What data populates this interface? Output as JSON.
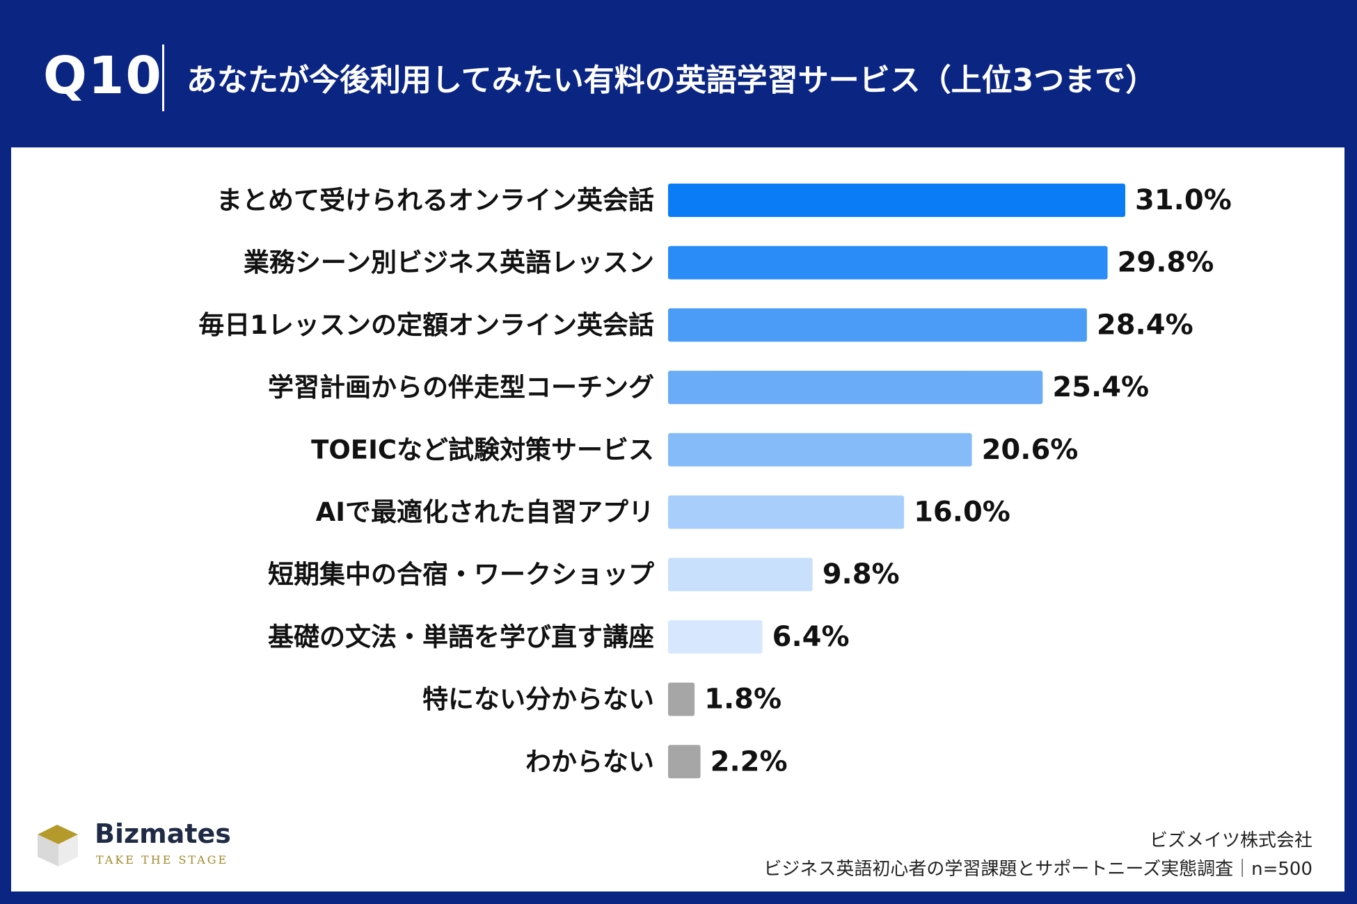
{
  "header": {
    "question_number": "Q10",
    "title": "あなたが今後利用してみたい有料の英語学習サービス（上位3つまで）"
  },
  "chart_data": {
    "type": "bar",
    "orientation": "horizontal",
    "title": "あなたが今後利用してみたい有料の英語学習サービス（上位3つまで）",
    "categories": [
      "まとめて受けられるオンライン英会話",
      "業務シーン別ビジネス英語レッスン",
      "毎日1レッスンの定額オンライン英会話",
      "学習計画からの伴走型コーチング",
      "TOEICなど試験対策サービス",
      "AIで最適化された自習アプリ",
      "短期集中の合宿・ワークショップ",
      "基礎の文法・単語を学び直す講座",
      "特にない分からない",
      "わからない"
    ],
    "values": [
      31.0,
      29.8,
      28.4,
      25.4,
      20.6,
      16.0,
      9.8,
      6.4,
      1.8,
      2.2
    ],
    "value_labels": [
      "31.0%",
      "29.8%",
      "28.4%",
      "25.4%",
      "20.6%",
      "16.0%",
      "9.8%",
      "6.4%",
      "1.8%",
      "2.2%"
    ],
    "colors": [
      "#0a7cf5",
      "#2a8cf6",
      "#4a9cf7",
      "#6aacf8",
      "#86bbf9",
      "#a8cefb",
      "#c9e0fc",
      "#d7e7fd",
      "#a6a6a6",
      "#a6a6a6"
    ],
    "unit": "%",
    "xlim": [
      0,
      31.0
    ],
    "grid": false,
    "legend": "none"
  },
  "branding": {
    "name": "Bizmates",
    "tagline": "TAKE THE STAGE"
  },
  "source": {
    "company": "ビズメイツ株式会社",
    "survey": "ビジネス英語初心者の学習課題とサポートニーズ実態調査｜n=500"
  }
}
